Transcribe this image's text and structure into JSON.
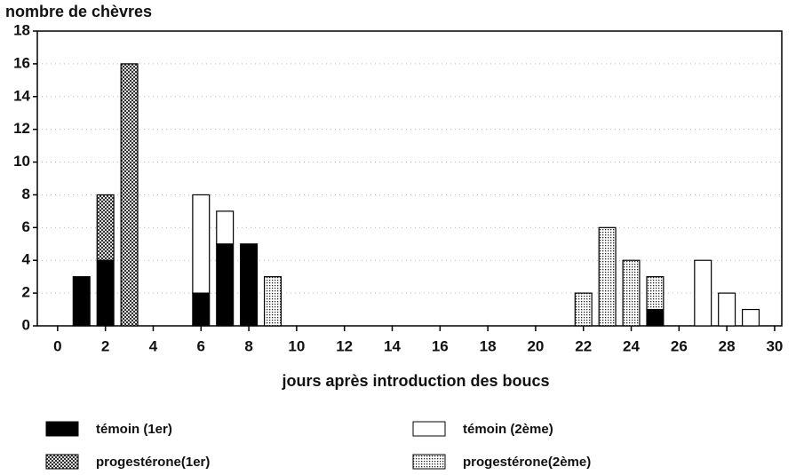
{
  "chart_data": {
    "type": "bar",
    "stacked": true,
    "ylabel": "nombre de chèvres",
    "xlabel": "jours après introduction des boucs",
    "x": [
      1,
      2,
      3,
      6,
      7,
      8,
      9,
      22,
      23,
      24,
      25,
      27,
      28,
      29
    ],
    "series": [
      {
        "name": "témoin (1er)",
        "color": "#000000",
        "pattern": "solid",
        "values": [
          3,
          4,
          null,
          2,
          5,
          5,
          null,
          null,
          null,
          null,
          1,
          null,
          null,
          null
        ]
      },
      {
        "name": "progestérone(1er)",
        "color": "#555555",
        "pattern": "crosshatch",
        "values": [
          null,
          4,
          16,
          null,
          null,
          null,
          null,
          null,
          null,
          null,
          null,
          null,
          null,
          null
        ]
      },
      {
        "name": "témoin (2ème)",
        "color": "#ffffff",
        "pattern": "solid",
        "values": [
          null,
          null,
          null,
          6,
          2,
          null,
          null,
          null,
          null,
          null,
          null,
          4,
          2,
          1
        ]
      },
      {
        "name": "progestérone(2ème)",
        "color": "#444444",
        "pattern": "dots",
        "values": [
          null,
          null,
          null,
          null,
          null,
          null,
          3,
          2,
          6,
          4,
          2,
          null,
          null,
          null
        ]
      }
    ],
    "xlim": [
      -0.85,
      30.3
    ],
    "xticks": [
      0,
      2,
      4,
      6,
      8,
      10,
      12,
      14,
      16,
      18,
      20,
      22,
      24,
      26,
      28,
      30
    ],
    "ylim": [
      0,
      18
    ],
    "yticks": [
      0,
      2,
      4,
      6,
      8,
      10,
      12,
      14,
      16,
      18
    ],
    "grid": true
  }
}
